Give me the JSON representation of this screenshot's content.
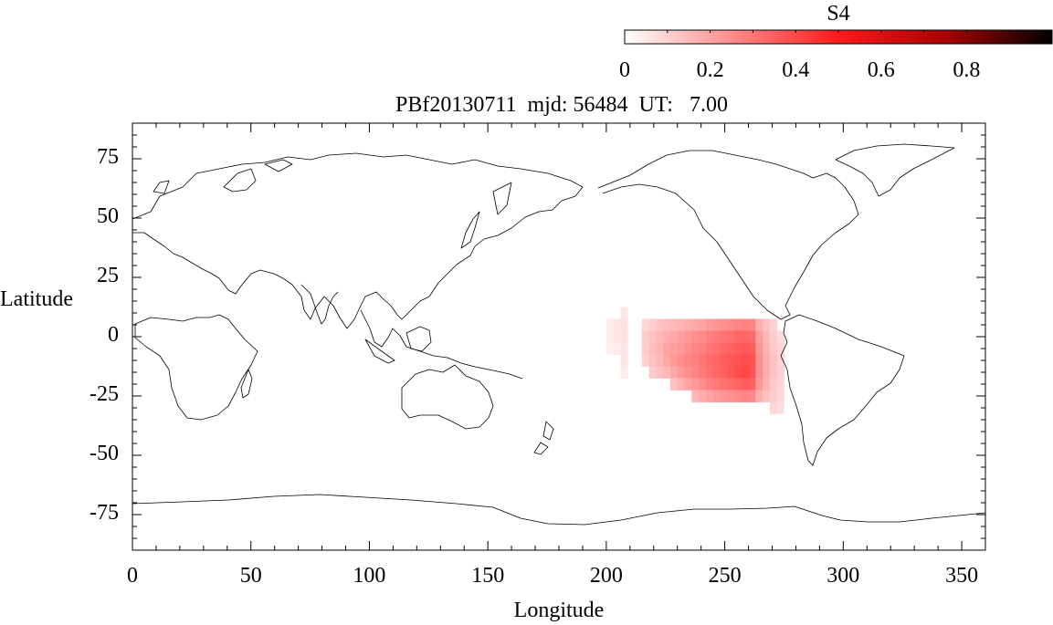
{
  "colorbar": {
    "label": "S4",
    "ticks": [
      "0",
      "0.2",
      "0.4",
      "0.6",
      "0.8"
    ],
    "tick_values": [
      0,
      0.2,
      0.4,
      0.6,
      0.8
    ],
    "range": [
      0,
      1.0
    ]
  },
  "title": "PBf20130711  mjd: 56484  UT:   7.00",
  "map": {
    "xlabel": "Longitude",
    "ylabel": "Latitude",
    "xlim": [
      0,
      360
    ],
    "ylim": [
      -90,
      90
    ],
    "xticks": [
      "0",
      "50",
      "100",
      "150",
      "200",
      "250",
      "300",
      "350"
    ],
    "xtick_values": [
      0,
      50,
      100,
      150,
      200,
      250,
      300,
      350
    ],
    "yticks": [
      "75",
      "50",
      "25",
      "0",
      "-25",
      "-50",
      "-75"
    ],
    "ytick_values": [
      75,
      50,
      25,
      0,
      -25,
      -50,
      -75
    ]
  },
  "colors": {
    "low": "#ffffff",
    "mid": "#ff0000",
    "high": "#000000",
    "coast": "#000000"
  },
  "chart_data": {
    "type": "heatmap",
    "title": "PBf20130711  mjd: 56484  UT:   7.00",
    "xlabel": "Longitude",
    "ylabel": "Latitude",
    "colorbar_label": "S4",
    "xlim": [
      0,
      360
    ],
    "ylim": [
      -90,
      90
    ],
    "cell_size_deg": [
      3,
      5
    ],
    "cells": [
      {
        "lon": 200,
        "lat": 5,
        "v": 0.04
      },
      {
        "lon": 203,
        "lat": 5,
        "v": 0.05
      },
      {
        "lon": 200,
        "lat": 0,
        "v": 0.04
      },
      {
        "lon": 203,
        "lat": 0,
        "v": 0.05
      },
      {
        "lon": 200,
        "lat": -5,
        "v": 0.03
      },
      {
        "lon": 203,
        "lat": -5,
        "v": 0.04
      },
      {
        "lon": 206,
        "lat": 10,
        "v": 0.05
      },
      {
        "lon": 206,
        "lat": 5,
        "v": 0.06
      },
      {
        "lon": 206,
        "lat": 0,
        "v": 0.06
      },
      {
        "lon": 206,
        "lat": -5,
        "v": 0.05
      },
      {
        "lon": 206,
        "lat": -10,
        "v": 0.05
      },
      {
        "lon": 206,
        "lat": -15,
        "v": 0.04
      },
      {
        "lon": 215,
        "lat": 5,
        "v": 0.08
      },
      {
        "lon": 215,
        "lat": 0,
        "v": 0.1
      },
      {
        "lon": 215,
        "lat": -5,
        "v": 0.1
      },
      {
        "lon": 215,
        "lat": -10,
        "v": 0.09
      },
      {
        "lon": 218,
        "lat": 5,
        "v": 0.1
      },
      {
        "lon": 218,
        "lat": 0,
        "v": 0.12
      },
      {
        "lon": 218,
        "lat": -5,
        "v": 0.13
      },
      {
        "lon": 218,
        "lat": -10,
        "v": 0.12
      },
      {
        "lon": 218,
        "lat": -15,
        "v": 0.1
      },
      {
        "lon": 221,
        "lat": 5,
        "v": 0.12
      },
      {
        "lon": 221,
        "lat": 0,
        "v": 0.14
      },
      {
        "lon": 221,
        "lat": -5,
        "v": 0.15
      },
      {
        "lon": 221,
        "lat": -10,
        "v": 0.14
      },
      {
        "lon": 221,
        "lat": -15,
        "v": 0.12
      },
      {
        "lon": 224,
        "lat": 5,
        "v": 0.13
      },
      {
        "lon": 224,
        "lat": 0,
        "v": 0.16
      },
      {
        "lon": 224,
        "lat": -5,
        "v": 0.18
      },
      {
        "lon": 224,
        "lat": -10,
        "v": 0.17
      },
      {
        "lon": 224,
        "lat": -15,
        "v": 0.14
      },
      {
        "lon": 227,
        "lat": 5,
        "v": 0.14
      },
      {
        "lon": 227,
        "lat": 0,
        "v": 0.17
      },
      {
        "lon": 227,
        "lat": -5,
        "v": 0.19
      },
      {
        "lon": 227,
        "lat": -10,
        "v": 0.2
      },
      {
        "lon": 227,
        "lat": -15,
        "v": 0.17
      },
      {
        "lon": 227,
        "lat": -20,
        "v": 0.12
      },
      {
        "lon": 230,
        "lat": 5,
        "v": 0.15
      },
      {
        "lon": 230,
        "lat": 0,
        "v": 0.19
      },
      {
        "lon": 230,
        "lat": -5,
        "v": 0.2
      },
      {
        "lon": 230,
        "lat": -10,
        "v": 0.22
      },
      {
        "lon": 230,
        "lat": -15,
        "v": 0.2
      },
      {
        "lon": 230,
        "lat": -20,
        "v": 0.15
      },
      {
        "lon": 233,
        "lat": 5,
        "v": 0.16
      },
      {
        "lon": 233,
        "lat": 0,
        "v": 0.2
      },
      {
        "lon": 233,
        "lat": -5,
        "v": 0.22
      },
      {
        "lon": 233,
        "lat": -10,
        "v": 0.24
      },
      {
        "lon": 233,
        "lat": -15,
        "v": 0.22
      },
      {
        "lon": 233,
        "lat": -20,
        "v": 0.18
      },
      {
        "lon": 236,
        "lat": 5,
        "v": 0.17
      },
      {
        "lon": 236,
        "lat": 0,
        "v": 0.22
      },
      {
        "lon": 236,
        "lat": -5,
        "v": 0.24
      },
      {
        "lon": 236,
        "lat": -10,
        "v": 0.25
      },
      {
        "lon": 236,
        "lat": -15,
        "v": 0.24
      },
      {
        "lon": 236,
        "lat": -20,
        "v": 0.2
      },
      {
        "lon": 236,
        "lat": -25,
        "v": 0.14
      },
      {
        "lon": 239,
        "lat": 5,
        "v": 0.18
      },
      {
        "lon": 239,
        "lat": 0,
        "v": 0.23
      },
      {
        "lon": 239,
        "lat": -5,
        "v": 0.25
      },
      {
        "lon": 239,
        "lat": -10,
        "v": 0.27
      },
      {
        "lon": 239,
        "lat": -15,
        "v": 0.26
      },
      {
        "lon": 239,
        "lat": -20,
        "v": 0.22
      },
      {
        "lon": 239,
        "lat": -25,
        "v": 0.16
      },
      {
        "lon": 242,
        "lat": 5,
        "v": 0.2
      },
      {
        "lon": 242,
        "lat": 0,
        "v": 0.25
      },
      {
        "lon": 242,
        "lat": -5,
        "v": 0.27
      },
      {
        "lon": 242,
        "lat": -10,
        "v": 0.29
      },
      {
        "lon": 242,
        "lat": -15,
        "v": 0.28
      },
      {
        "lon": 242,
        "lat": -20,
        "v": 0.25
      },
      {
        "lon": 242,
        "lat": -25,
        "v": 0.18
      },
      {
        "lon": 245,
        "lat": 5,
        "v": 0.21
      },
      {
        "lon": 245,
        "lat": 0,
        "v": 0.26
      },
      {
        "lon": 245,
        "lat": -5,
        "v": 0.28
      },
      {
        "lon": 245,
        "lat": -10,
        "v": 0.3
      },
      {
        "lon": 245,
        "lat": -15,
        "v": 0.3
      },
      {
        "lon": 245,
        "lat": -20,
        "v": 0.26
      },
      {
        "lon": 245,
        "lat": -25,
        "v": 0.2
      },
      {
        "lon": 248,
        "lat": 5,
        "v": 0.22
      },
      {
        "lon": 248,
        "lat": 0,
        "v": 0.27
      },
      {
        "lon": 248,
        "lat": -5,
        "v": 0.3
      },
      {
        "lon": 248,
        "lat": -10,
        "v": 0.32
      },
      {
        "lon": 248,
        "lat": -15,
        "v": 0.31
      },
      {
        "lon": 248,
        "lat": -20,
        "v": 0.28
      },
      {
        "lon": 248,
        "lat": -25,
        "v": 0.21
      },
      {
        "lon": 251,
        "lat": 5,
        "v": 0.23
      },
      {
        "lon": 251,
        "lat": 0,
        "v": 0.28
      },
      {
        "lon": 251,
        "lat": -5,
        "v": 0.31
      },
      {
        "lon": 251,
        "lat": -10,
        "v": 0.33
      },
      {
        "lon": 251,
        "lat": -15,
        "v": 0.33
      },
      {
        "lon": 251,
        "lat": -20,
        "v": 0.29
      },
      {
        "lon": 251,
        "lat": -25,
        "v": 0.22
      },
      {
        "lon": 254,
        "lat": 5,
        "v": 0.24
      },
      {
        "lon": 254,
        "lat": 0,
        "v": 0.3
      },
      {
        "lon": 254,
        "lat": -5,
        "v": 0.32
      },
      {
        "lon": 254,
        "lat": -10,
        "v": 0.34
      },
      {
        "lon": 254,
        "lat": -15,
        "v": 0.35
      },
      {
        "lon": 254,
        "lat": -20,
        "v": 0.3
      },
      {
        "lon": 254,
        "lat": -25,
        "v": 0.23
      },
      {
        "lon": 257,
        "lat": 5,
        "v": 0.25
      },
      {
        "lon": 257,
        "lat": 0,
        "v": 0.3
      },
      {
        "lon": 257,
        "lat": -5,
        "v": 0.33
      },
      {
        "lon": 257,
        "lat": -10,
        "v": 0.35
      },
      {
        "lon": 257,
        "lat": -15,
        "v": 0.36
      },
      {
        "lon": 257,
        "lat": -20,
        "v": 0.32
      },
      {
        "lon": 257,
        "lat": -25,
        "v": 0.24
      },
      {
        "lon": 260,
        "lat": 5,
        "v": 0.24
      },
      {
        "lon": 260,
        "lat": 0,
        "v": 0.29
      },
      {
        "lon": 260,
        "lat": -5,
        "v": 0.32
      },
      {
        "lon": 260,
        "lat": -10,
        "v": 0.34
      },
      {
        "lon": 260,
        "lat": -15,
        "v": 0.34
      },
      {
        "lon": 260,
        "lat": -20,
        "v": 0.31
      },
      {
        "lon": 260,
        "lat": -25,
        "v": 0.23
      },
      {
        "lon": 263,
        "lat": 5,
        "v": 0.16
      },
      {
        "lon": 263,
        "lat": 0,
        "v": 0.19
      },
      {
        "lon": 263,
        "lat": -5,
        "v": 0.21
      },
      {
        "lon": 263,
        "lat": -10,
        "v": 0.22
      },
      {
        "lon": 263,
        "lat": -15,
        "v": 0.22
      },
      {
        "lon": 263,
        "lat": -20,
        "v": 0.2
      },
      {
        "lon": 263,
        "lat": -25,
        "v": 0.16
      },
      {
        "lon": 266,
        "lat": 5,
        "v": 0.12
      },
      {
        "lon": 266,
        "lat": 0,
        "v": 0.14
      },
      {
        "lon": 266,
        "lat": -5,
        "v": 0.15
      },
      {
        "lon": 266,
        "lat": -10,
        "v": 0.16
      },
      {
        "lon": 266,
        "lat": -15,
        "v": 0.16
      },
      {
        "lon": 266,
        "lat": -20,
        "v": 0.15
      },
      {
        "lon": 266,
        "lat": -25,
        "v": 0.12
      },
      {
        "lon": 269,
        "lat": 5,
        "v": 0.09
      },
      {
        "lon": 269,
        "lat": 0,
        "v": 0.1
      },
      {
        "lon": 269,
        "lat": -5,
        "v": 0.11
      },
      {
        "lon": 269,
        "lat": -10,
        "v": 0.12
      },
      {
        "lon": 269,
        "lat": -15,
        "v": 0.12
      },
      {
        "lon": 269,
        "lat": -20,
        "v": 0.11
      },
      {
        "lon": 269,
        "lat": -25,
        "v": 0.1
      },
      {
        "lon": 269,
        "lat": -30,
        "v": 0.08
      },
      {
        "lon": 272,
        "lat": 0,
        "v": 0.07
      },
      {
        "lon": 272,
        "lat": -5,
        "v": 0.08
      },
      {
        "lon": 272,
        "lat": -10,
        "v": 0.09
      },
      {
        "lon": 272,
        "lat": -15,
        "v": 0.09
      },
      {
        "lon": 272,
        "lat": -20,
        "v": 0.08
      },
      {
        "lon": 272,
        "lat": -25,
        "v": 0.08
      },
      {
        "lon": 272,
        "lat": -30,
        "v": 0.06
      }
    ]
  }
}
